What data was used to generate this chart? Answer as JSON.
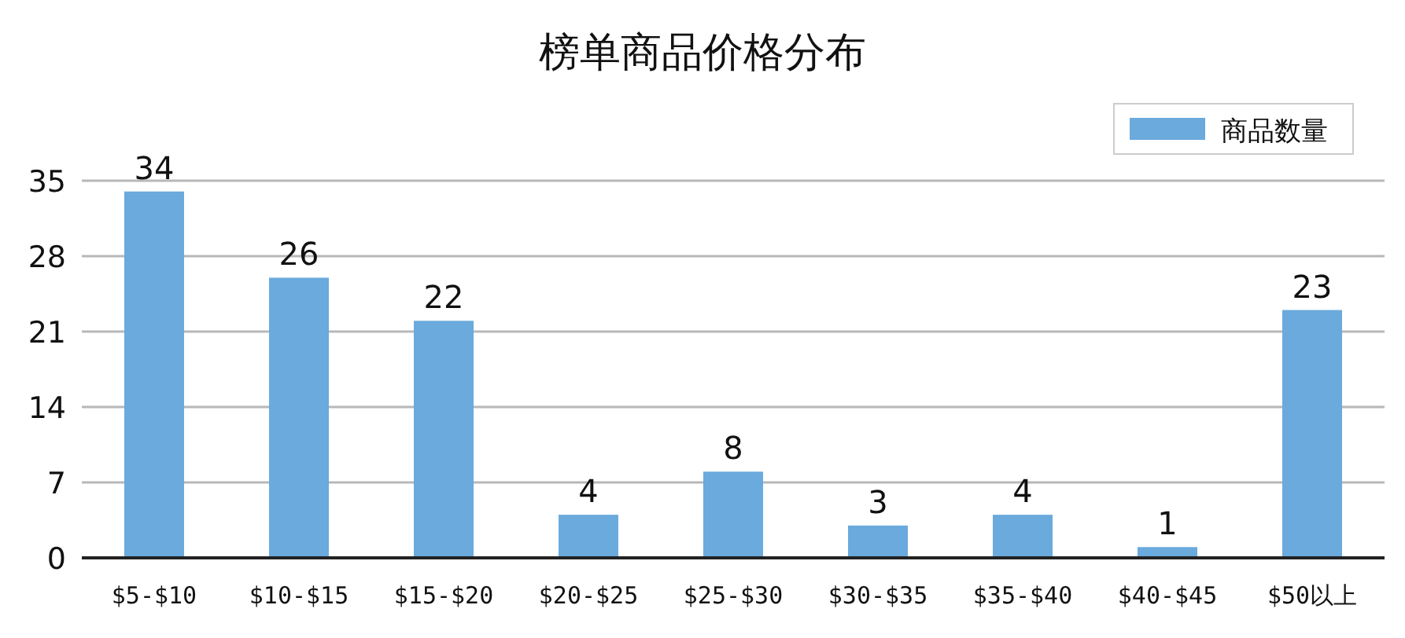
{
  "chart_data": {
    "type": "bar",
    "title": "榜单商品价格分布",
    "categories": [
      "$5-$10",
      "$10-$15",
      "$15-$20",
      "$20-$25",
      "$25-$30",
      "$30-$35",
      "$35-$40",
      "$40-$45",
      "$50以上"
    ],
    "series": [
      {
        "name": "商品数量",
        "color": "#6aaadd",
        "values": [
          34,
          26,
          22,
          4,
          8,
          3,
          4,
          1,
          23
        ]
      }
    ],
    "ylim": [
      0,
      35
    ],
    "yticks": [
      0,
      7,
      14,
      21,
      28,
      35
    ],
    "grid": "y",
    "legend": "top right",
    "data_labels": true
  }
}
